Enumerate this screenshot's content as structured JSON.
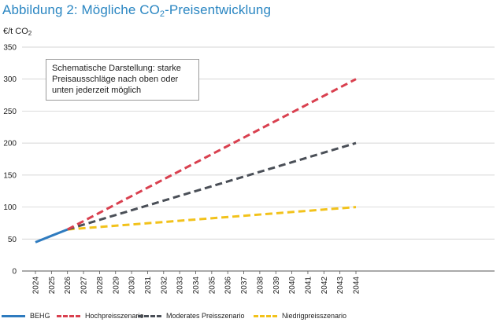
{
  "title": {
    "main": "Abbildung 2: Mögliche CO",
    "sub": "2",
    "suffix": "-Preisentwicklung"
  },
  "annotation": "Schematische Darstellung: starke Preisausschläge nach oben oder unten jederzeit möglich",
  "chart_data": {
    "type": "line",
    "ylabel": {
      "prefix": "€/t CO",
      "sub": "2"
    },
    "xlabel": "",
    "ylim": [
      0,
      350
    ],
    "yticks": [
      0,
      50,
      100,
      150,
      200,
      250,
      300,
      350
    ],
    "xticks": [
      "2024",
      "2025",
      "2026",
      "2027",
      "2028",
      "2029",
      "2030",
      "2031",
      "2032",
      "2033",
      "2034",
      "2035",
      "2036",
      "2037",
      "2038",
      "2039",
      "2040",
      "2041",
      "2042",
      "2043",
      "2044"
    ],
    "grid": "horizontal",
    "legend_position": "bottom",
    "series": [
      {
        "name": "BEHG",
        "color": "#2e7bbf",
        "style": "solid",
        "points": [
          [
            2024,
            45
          ],
          [
            2025,
            55
          ],
          [
            2026,
            65
          ]
        ]
      },
      {
        "name": "Hochpreisszenario",
        "color": "#d9404f",
        "style": "dashed",
        "points": [
          [
            2026,
            65
          ],
          [
            2044,
            300
          ]
        ]
      },
      {
        "name": "Moderates Preisszenario",
        "color": "#4a4f57",
        "style": "dashed",
        "points": [
          [
            2026,
            65
          ],
          [
            2044,
            200
          ]
        ]
      },
      {
        "name": "Niedrigpreisszenario",
        "color": "#f2c21b",
        "style": "dashed",
        "points": [
          [
            2026,
            65
          ],
          [
            2044,
            100
          ]
        ]
      }
    ]
  }
}
